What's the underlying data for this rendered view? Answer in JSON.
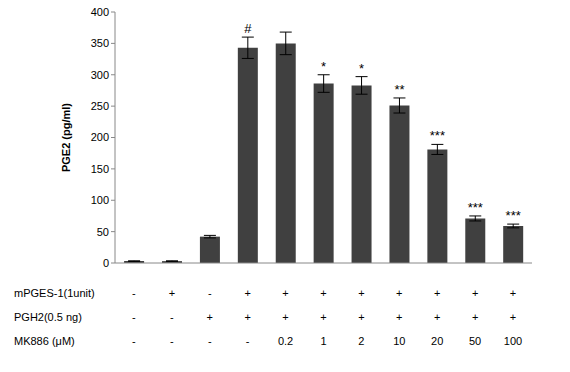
{
  "chart_data": {
    "type": "bar",
    "y_label": "PGE2 (pg/ml)",
    "categories": [
      null,
      null,
      null,
      null,
      null,
      null,
      null,
      null,
      null,
      null,
      null
    ],
    "values": [
      3,
      3,
      42,
      343,
      350,
      286,
      283,
      251,
      181,
      71,
      59
    ],
    "errors": [
      0.5,
      0.5,
      2,
      17,
      18,
      14,
      14,
      12,
      8,
      4,
      3
    ],
    "significance": [
      null,
      null,
      null,
      "#",
      null,
      "*",
      "*",
      "**",
      "***",
      "***",
      "***"
    ],
    "condition_rows": [
      {
        "label": "mPGES-1(1unit)",
        "values": [
          "-",
          "+",
          "-",
          "+",
          "+",
          "+",
          "+",
          "+",
          "+",
          "+",
          "+"
        ]
      },
      {
        "label": "PGH2(0.5 ng)",
        "values": [
          "-",
          "-",
          "+",
          "+",
          "+",
          "+",
          "+",
          "+",
          "+",
          "+",
          "+"
        ]
      },
      {
        "label": "MK886 (μM)",
        "values": [
          "-",
          "-",
          "-",
          "-",
          0.2,
          1,
          2,
          10,
          20,
          50,
          100
        ]
      }
    ],
    "color": "#404040",
    "ylim": [
      0,
      400
    ],
    "yticks": [
      0,
      50,
      100,
      150,
      200,
      250,
      300,
      350,
      400
    ],
    "grid": false
  }
}
